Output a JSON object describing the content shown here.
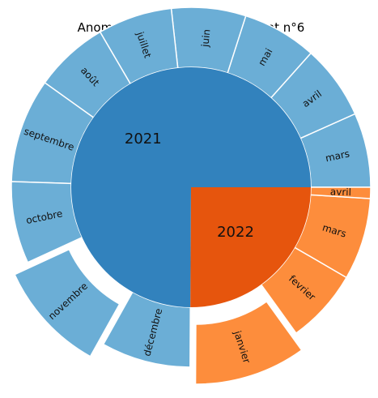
{
  "chart_data": {
    "type": "sunburst",
    "title": "Anomalies dans l'arrondissement n°6",
    "years": [
      {
        "label": "2021",
        "color": "#3282bd",
        "months": [
          {
            "label": "mars",
            "value": 1.0,
            "exploded": false
          },
          {
            "label": "avril",
            "value": 1.0,
            "exploded": false
          },
          {
            "label": "mai",
            "value": 1.0,
            "exploded": false
          },
          {
            "label": "juin",
            "value": 1.0,
            "exploded": false
          },
          {
            "label": "juillet",
            "value": 1.0,
            "exploded": false
          },
          {
            "label": "août",
            "value": 1.0,
            "exploded": false
          },
          {
            "label": "septembre",
            "value": 1.4,
            "exploded": false
          },
          {
            "label": "octobre",
            "value": 1.1,
            "exploded": false
          },
          {
            "label": "novembre",
            "value": 1.5,
            "exploded": true
          },
          {
            "label": "décembre",
            "value": 1.2,
            "exploded": false
          }
        ]
      },
      {
        "label": "2022",
        "color": "#e6550d",
        "months": [
          {
            "label": "janvier",
            "value": 1.5,
            "exploded": true
          },
          {
            "label": "fevrier",
            "value": 1.0,
            "exploded": false
          },
          {
            "label": "mars",
            "value": 1.1,
            "exploded": false
          },
          {
            "label": "avril",
            "value": 0.15,
            "exploded": false
          }
        ]
      }
    ],
    "month_colors": {
      "2021": "#6baed6",
      "2022": "#fd8d3c"
    }
  }
}
